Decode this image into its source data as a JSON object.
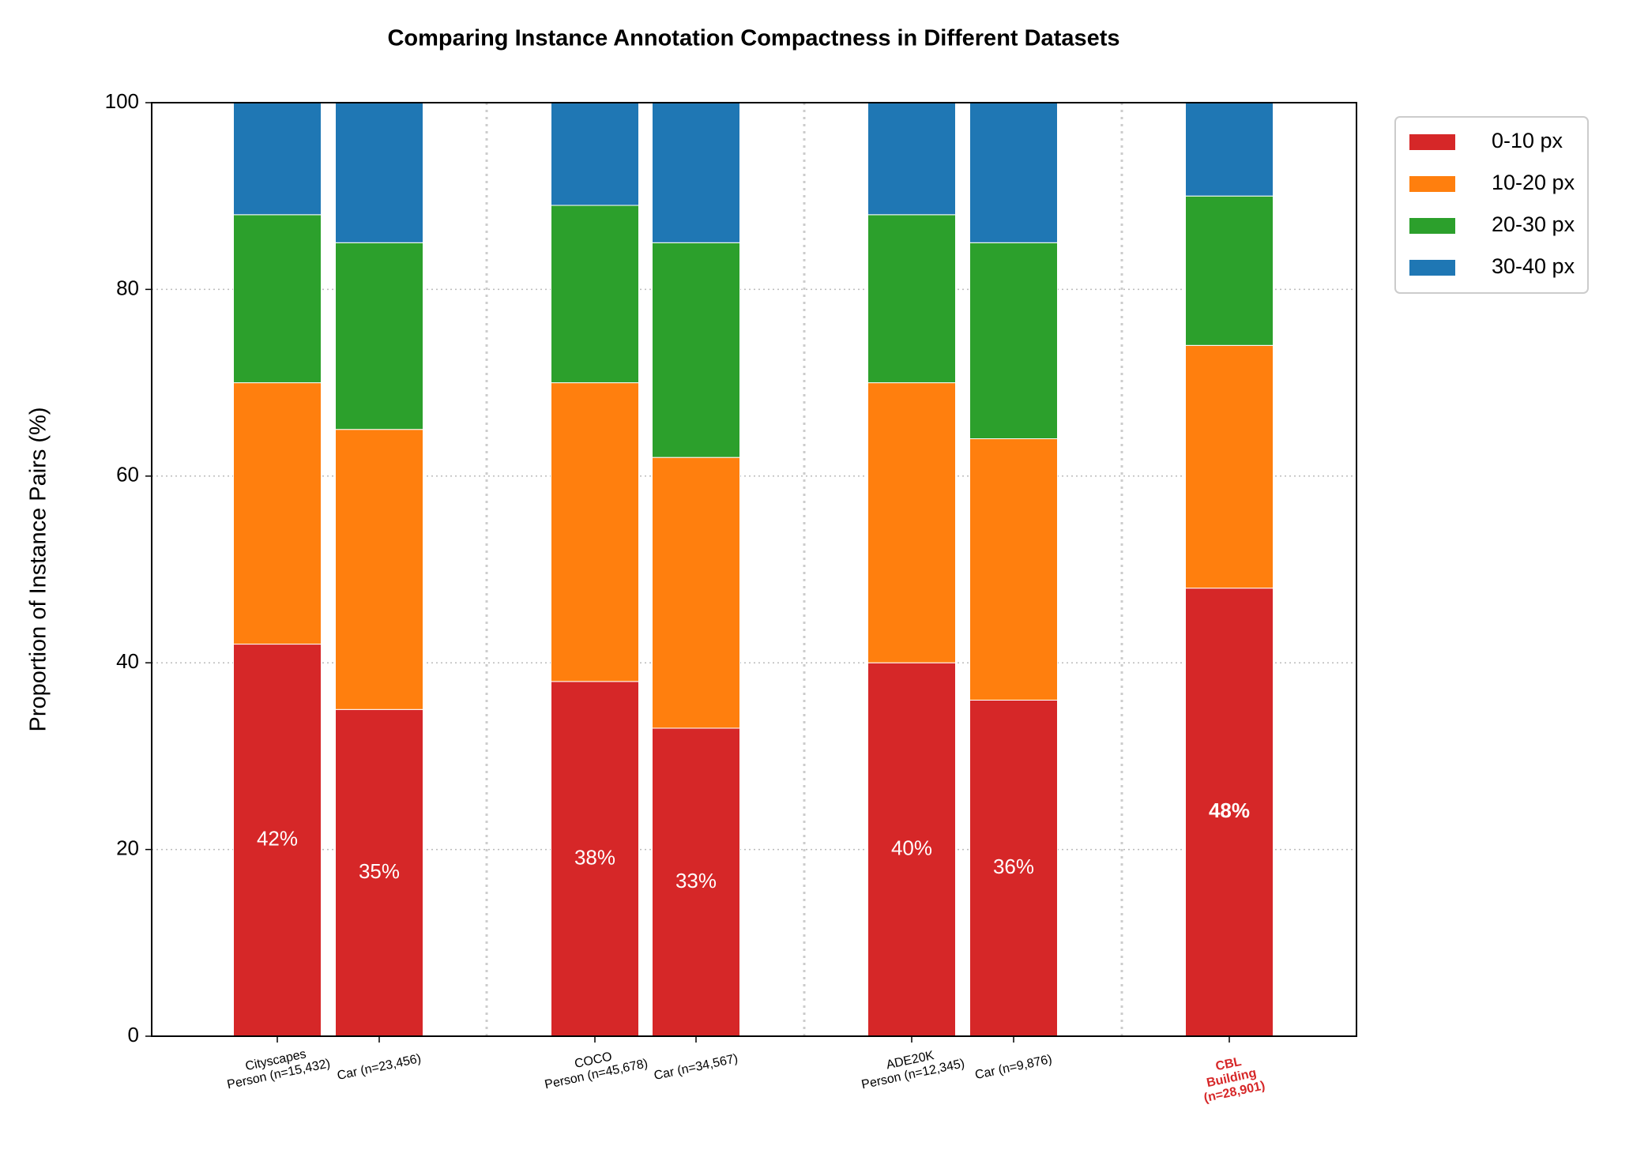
{
  "chart_data": {
    "type": "stacked_bar",
    "title": "Comparing Instance Annotation Compactness in Different Datasets",
    "y_label": "Proportion of Instance Pairs (%)",
    "categories": [
      [
        "Cityscapes",
        "Person (n=15,432)"
      ],
      [
        "Car (n=23,456)"
      ],
      [
        "COCO",
        "Person (n=45,678)"
      ],
      [
        "Car (n=34,567)"
      ],
      [
        "ADE20K",
        "Person (n=12,345)"
      ],
      [
        "Car (n=9,876)"
      ],
      [
        "CBL",
        "Building",
        "(n=28,901)"
      ]
    ],
    "series": [
      {
        "name": "0-10 px",
        "color": "#d62728",
        "values": [
          42,
          35,
          38,
          33,
          40,
          36,
          48
        ],
        "value_labels": [
          "42%",
          "35%",
          "38%",
          "33%",
          "40%",
          "36%",
          "48%"
        ]
      },
      {
        "name": "10-20 px",
        "color": "#ff7f0e",
        "values": [
          28,
          30,
          32,
          29,
          30,
          28,
          26
        ]
      },
      {
        "name": "20-30 px",
        "color": "#2ca02c",
        "values": [
          18,
          20,
          19,
          23,
          18,
          21,
          16
        ]
      },
      {
        "name": "30-40 px",
        "color": "#1f77b4",
        "values": [
          12,
          15,
          11,
          15,
          12,
          15,
          10
        ]
      }
    ],
    "ylim": [
      0,
      100
    ],
    "yticks": [
      0,
      20,
      40,
      60,
      80,
      100
    ],
    "grid": true,
    "legend": "outside-right"
  }
}
